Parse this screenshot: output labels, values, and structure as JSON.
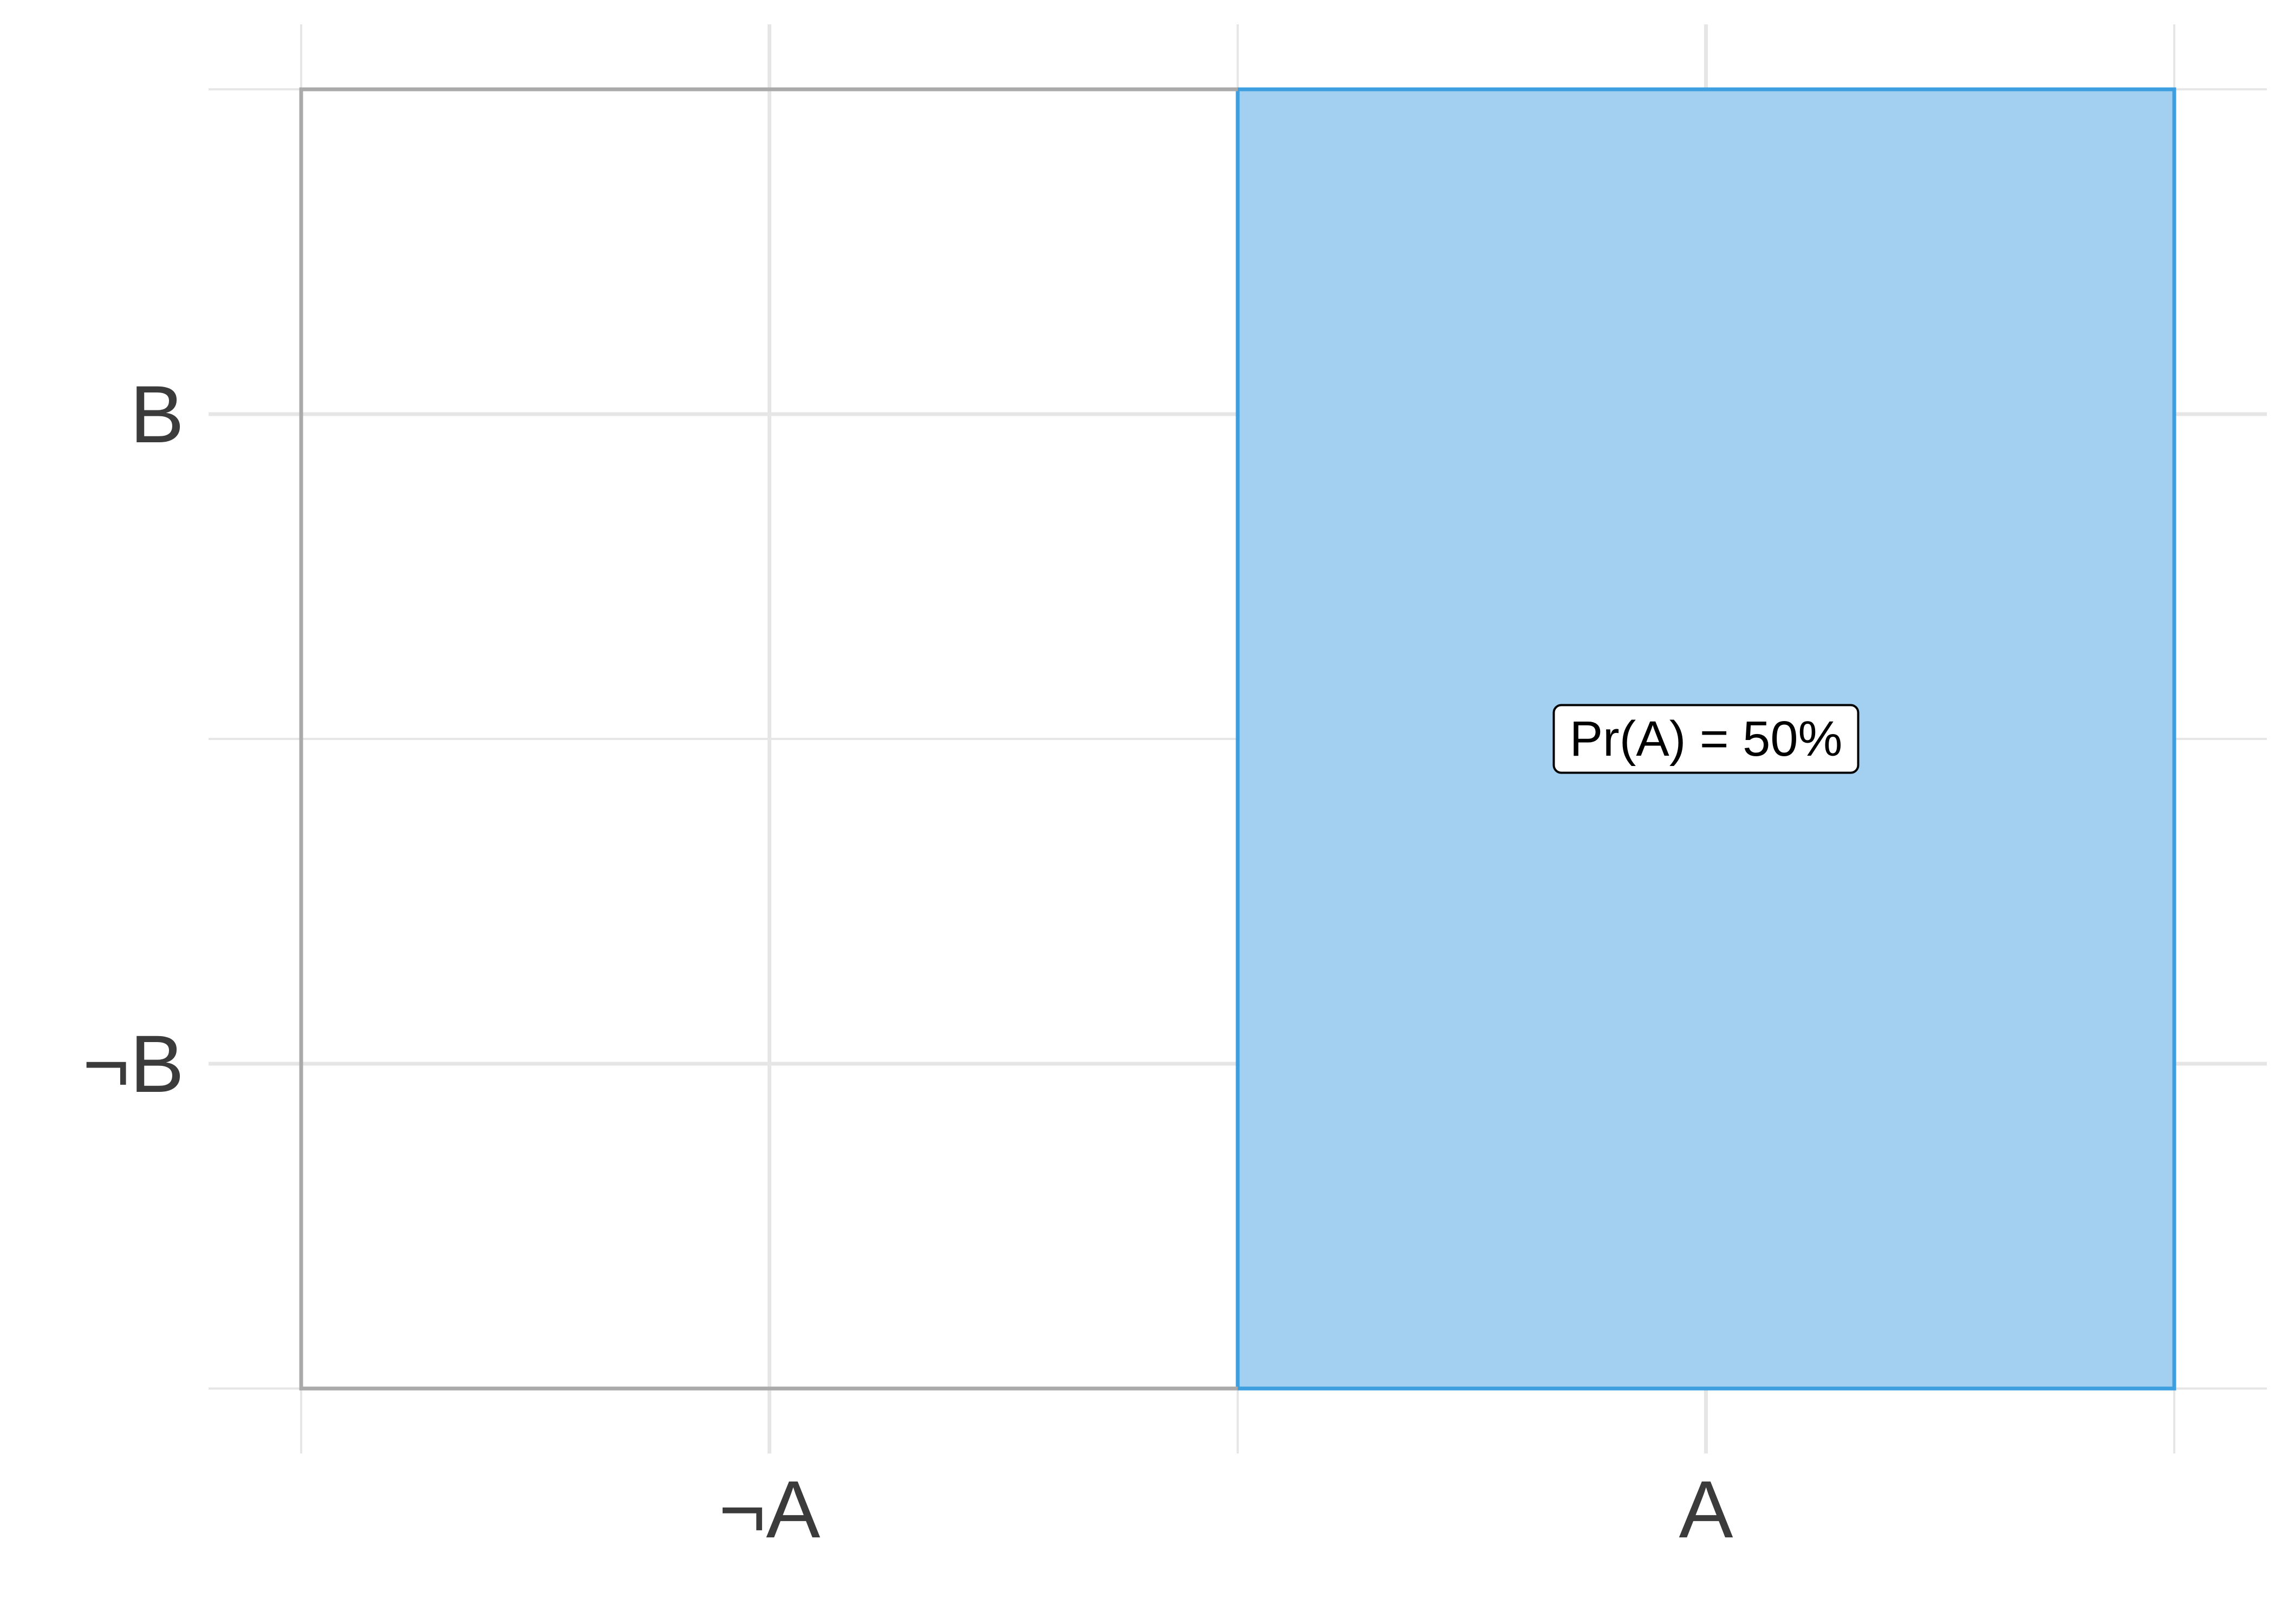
{
  "chart_data": {
    "type": "area",
    "title": "",
    "xlabel": "",
    "ylabel": "",
    "x_categories": [
      "¬A",
      "A"
    ],
    "y_categories": [
      "¬B",
      "B"
    ],
    "xlim": [
      0,
      1
    ],
    "ylim": [
      0,
      1
    ],
    "grid": true,
    "regions": [
      {
        "label": "A",
        "x_range": [
          0.5,
          1.0
        ],
        "y_range": [
          0,
          1
        ],
        "fill": "#a3d0f1",
        "stroke": "#3d9ee0"
      }
    ],
    "outline_color": "#aaaaaa",
    "annotation": {
      "text": "Pr(A) = 50%",
      "x": 0.75,
      "y": 0.5
    }
  }
}
